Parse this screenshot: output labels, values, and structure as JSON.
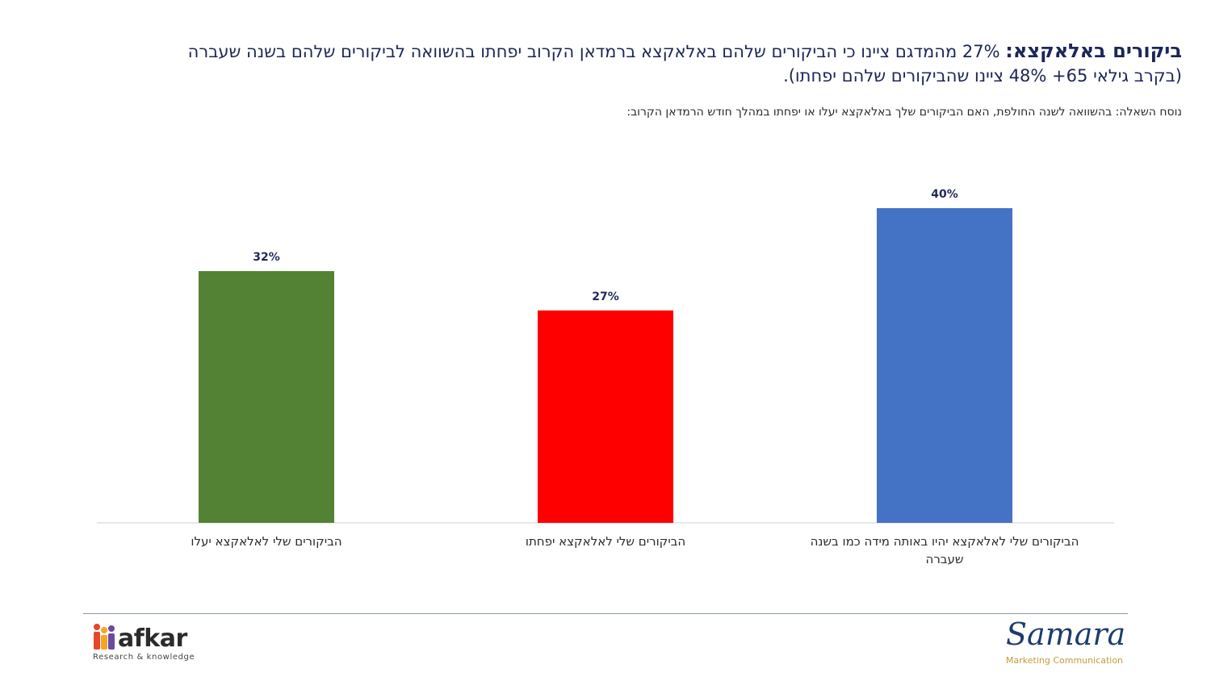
{
  "header": {
    "title_bold": "ביקורים באלאקצא:",
    "title_rest_line1": "27% מהמדגם ציינו כי הביקורים שלהם באלאקצא ברמדאן הקרוב יפחתו בהשוואה לביקורים שלהם בשנה שעברה",
    "title_line2": "(בקרב גילאי 65+ 48% ציינו שהביקורים שלהם יפחתו).",
    "question": "נוסח השאלה: בהשוואה לשנה החולפת, האם הביקורים שלך באלאקצא יעלו או יפחתו במהלך חודש הרמדאן הקרוב:"
  },
  "chart_data": {
    "type": "bar",
    "categories": [
      [
        "הביקורים שלי לאלאקצא יעלו"
      ],
      [
        "הביקורים שלי לאלאקצא יפחתו"
      ],
      [
        "הביקורים שלי לאלאקצא יהיו באותה מידה כמו בשנה",
        "שעברה"
      ]
    ],
    "values": [
      32,
      27,
      40
    ],
    "data_labels": [
      "32%",
      "27%",
      "40%"
    ],
    "colors": [
      "#548235",
      "#ff0000",
      "#4472c4"
    ],
    "ylim": [
      0,
      40
    ],
    "grid": false,
    "legend": "none"
  },
  "footer": {
    "left_logo_text": "afkar",
    "left_logo_sub": "Research & knowledge",
    "right_logo_text": "Samara",
    "right_logo_sub": "Marketing Communication"
  }
}
